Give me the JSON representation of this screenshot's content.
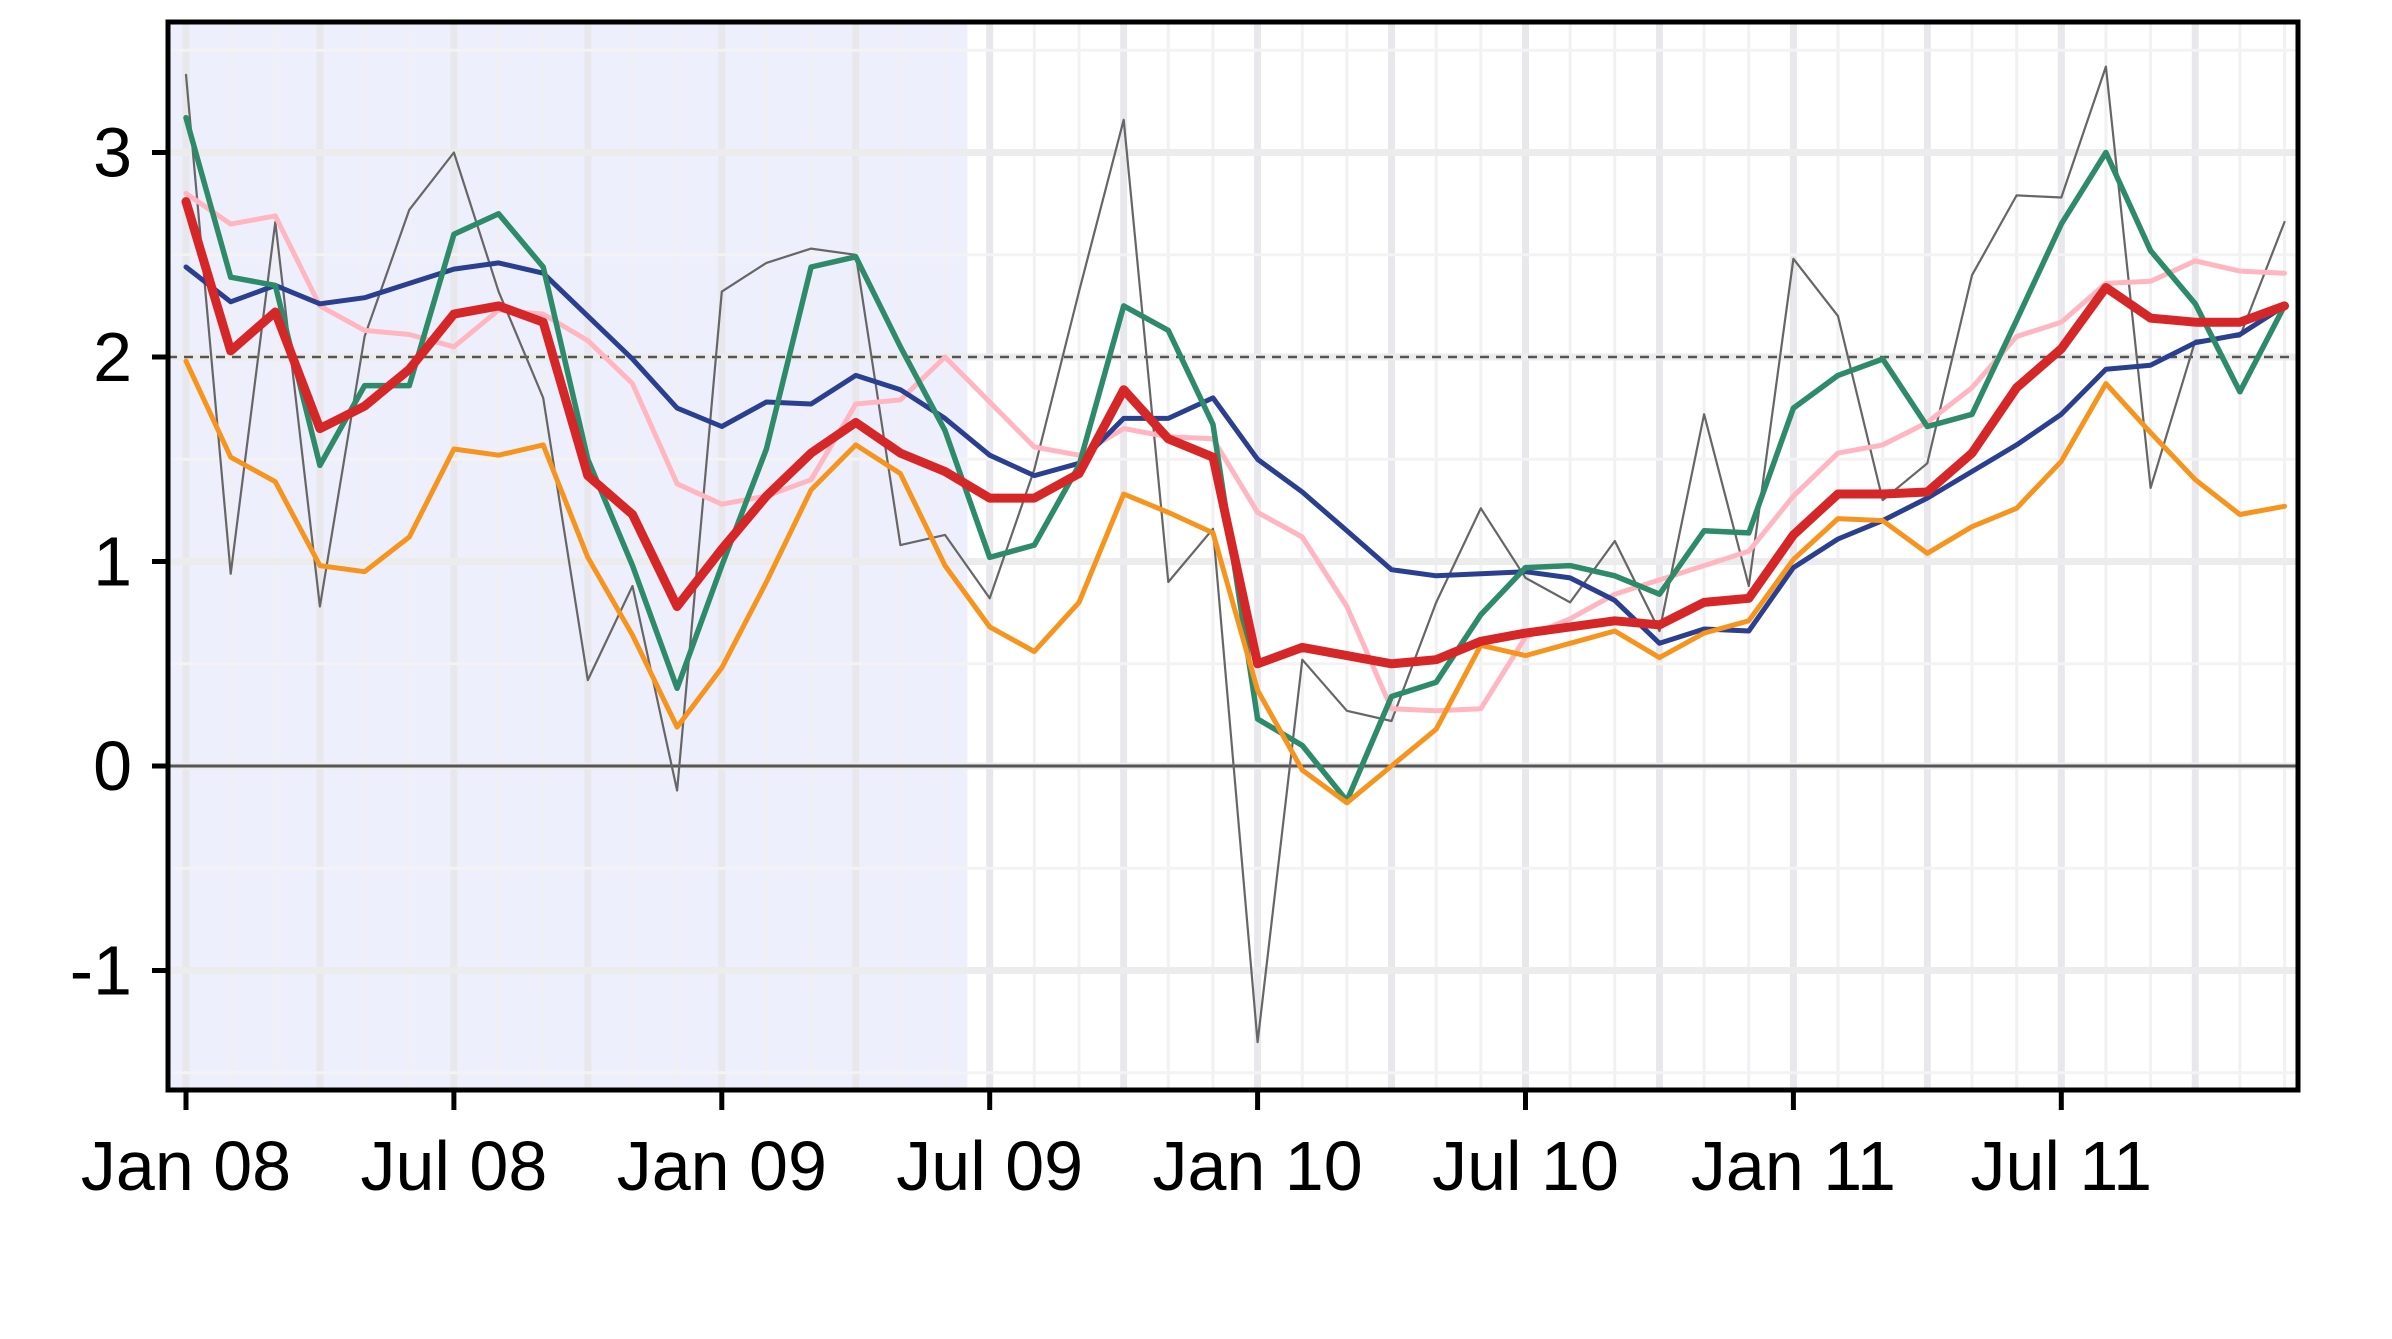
{
  "chart_data": {
    "type": "line",
    "title": "",
    "xlabel": "",
    "ylabel": "",
    "ylim": [
      -1.6,
      3.6
    ],
    "y_ticks": [
      -1,
      0,
      1,
      2,
      3
    ],
    "y_tick_labels": [
      "-1",
      "0",
      "1",
      "2",
      "3"
    ],
    "x_ticks": [
      "2008-01",
      "2008-07",
      "2009-01",
      "2009-07",
      "2010-01",
      "2010-07",
      "2011-01",
      "2011-07"
    ],
    "x_tick_labels": [
      "Jan 08",
      "Jul 08",
      "Jan 09",
      "Jul 09",
      "Jan 10",
      "Jul 10",
      "Jan 11",
      "Jul 11"
    ],
    "x_start": "2008-01",
    "x_end": "2011-12",
    "shaded_period": [
      "2008-01",
      "2009-06"
    ],
    "reference_line": 2,
    "zero_line": 0,
    "grid": true,
    "legend": "none",
    "series": [
      {
        "color": "#666666",
        "values": [
          3.38,
          0.94,
          2.66,
          0.78,
          2.1,
          2.72,
          3.0,
          2.32,
          1.8,
          0.42,
          0.88,
          -0.12,
          2.32,
          2.46,
          2.53,
          2.5,
          1.08,
          1.13,
          0.82,
          1.45,
          2.32,
          3.16,
          0.9,
          1.16,
          -1.35,
          0.52,
          0.27,
          0.22,
          0.8,
          1.26,
          0.92,
          0.8,
          1.1,
          0.66,
          1.72,
          0.88,
          2.48,
          2.2,
          1.3,
          1.48,
          2.4,
          2.79,
          2.78,
          3.42,
          1.36,
          2.08,
          2.1,
          2.66
        ]
      },
      {
        "color": "#ffb6c1",
        "values": [
          2.8,
          2.65,
          2.69,
          2.25,
          2.13,
          2.11,
          2.05,
          2.23,
          2.21,
          2.08,
          1.87,
          1.38,
          1.28,
          1.32,
          1.4,
          1.77,
          1.79,
          2.0,
          1.78,
          1.56,
          1.52,
          1.65,
          1.61,
          1.6,
          1.24,
          1.12,
          0.78,
          0.28,
          0.27,
          0.28,
          0.63,
          0.72,
          0.84,
          0.91,
          0.98,
          1.05,
          1.32,
          1.53,
          1.57,
          1.68,
          1.85,
          2.1,
          2.17,
          2.36,
          2.37,
          2.47,
          2.42,
          2.41
        ]
      },
      {
        "color": "#2a3f8f",
        "values": [
          2.44,
          2.27,
          2.35,
          2.26,
          2.29,
          2.36,
          2.43,
          2.46,
          2.41,
          2.2,
          1.99,
          1.75,
          1.66,
          1.78,
          1.77,
          1.91,
          1.84,
          1.7,
          1.52,
          1.42,
          1.48,
          1.7,
          1.7,
          1.8,
          1.5,
          1.34,
          1.15,
          0.96,
          0.93,
          0.94,
          0.95,
          0.92,
          0.81,
          0.6,
          0.67,
          0.66,
          0.97,
          1.11,
          1.2,
          1.31,
          1.44,
          1.57,
          1.72,
          1.94,
          1.96,
          2.07,
          2.11,
          2.25
        ]
      },
      {
        "color": "#2e8b6a",
        "values": [
          3.17,
          2.39,
          2.35,
          1.47,
          1.86,
          1.86,
          2.6,
          2.7,
          2.44,
          1.5,
          0.98,
          0.38,
          0.98,
          1.55,
          2.44,
          2.49,
          2.05,
          1.64,
          1.02,
          1.08,
          1.47,
          2.25,
          2.13,
          1.67,
          0.23,
          0.1,
          -0.17,
          0.34,
          0.41,
          0.74,
          0.97,
          0.98,
          0.93,
          0.84,
          1.15,
          1.14,
          1.75,
          1.91,
          1.99,
          1.66,
          1.72,
          2.18,
          2.65,
          3.0,
          2.52,
          2.26,
          1.83,
          2.25
        ]
      },
      {
        "color": "#f7941d",
        "values": [
          1.98,
          1.51,
          1.39,
          0.98,
          0.95,
          1.12,
          1.55,
          1.52,
          1.57,
          1.02,
          0.64,
          0.19,
          0.48,
          0.9,
          1.35,
          1.57,
          1.43,
          0.98,
          0.68,
          0.56,
          0.8,
          1.33,
          1.24,
          1.14,
          0.37,
          -0.02,
          -0.18,
          0.0,
          0.18,
          0.59,
          0.54,
          0.6,
          0.66,
          0.53,
          0.65,
          0.71,
          1.01,
          1.21,
          1.2,
          1.04,
          1.17,
          1.26,
          1.49,
          1.87,
          1.63,
          1.4,
          1.23,
          1.27
        ]
      },
      {
        "color": "#d62728",
        "values": [
          2.76,
          2.03,
          2.22,
          1.65,
          1.76,
          1.94,
          2.21,
          2.25,
          2.17,
          1.42,
          1.23,
          0.78,
          1.06,
          1.32,
          1.53,
          1.68,
          1.53,
          1.44,
          1.31,
          1.31,
          1.43,
          1.84,
          1.6,
          1.51,
          0.5,
          0.58,
          0.54,
          0.5,
          0.52,
          0.61,
          0.65,
          0.68,
          0.71,
          0.69,
          0.8,
          0.82,
          1.13,
          1.33,
          1.33,
          1.34,
          1.53,
          1.85,
          2.04,
          2.34,
          2.19,
          2.17,
          2.17,
          2.25
        ]
      }
    ]
  }
}
